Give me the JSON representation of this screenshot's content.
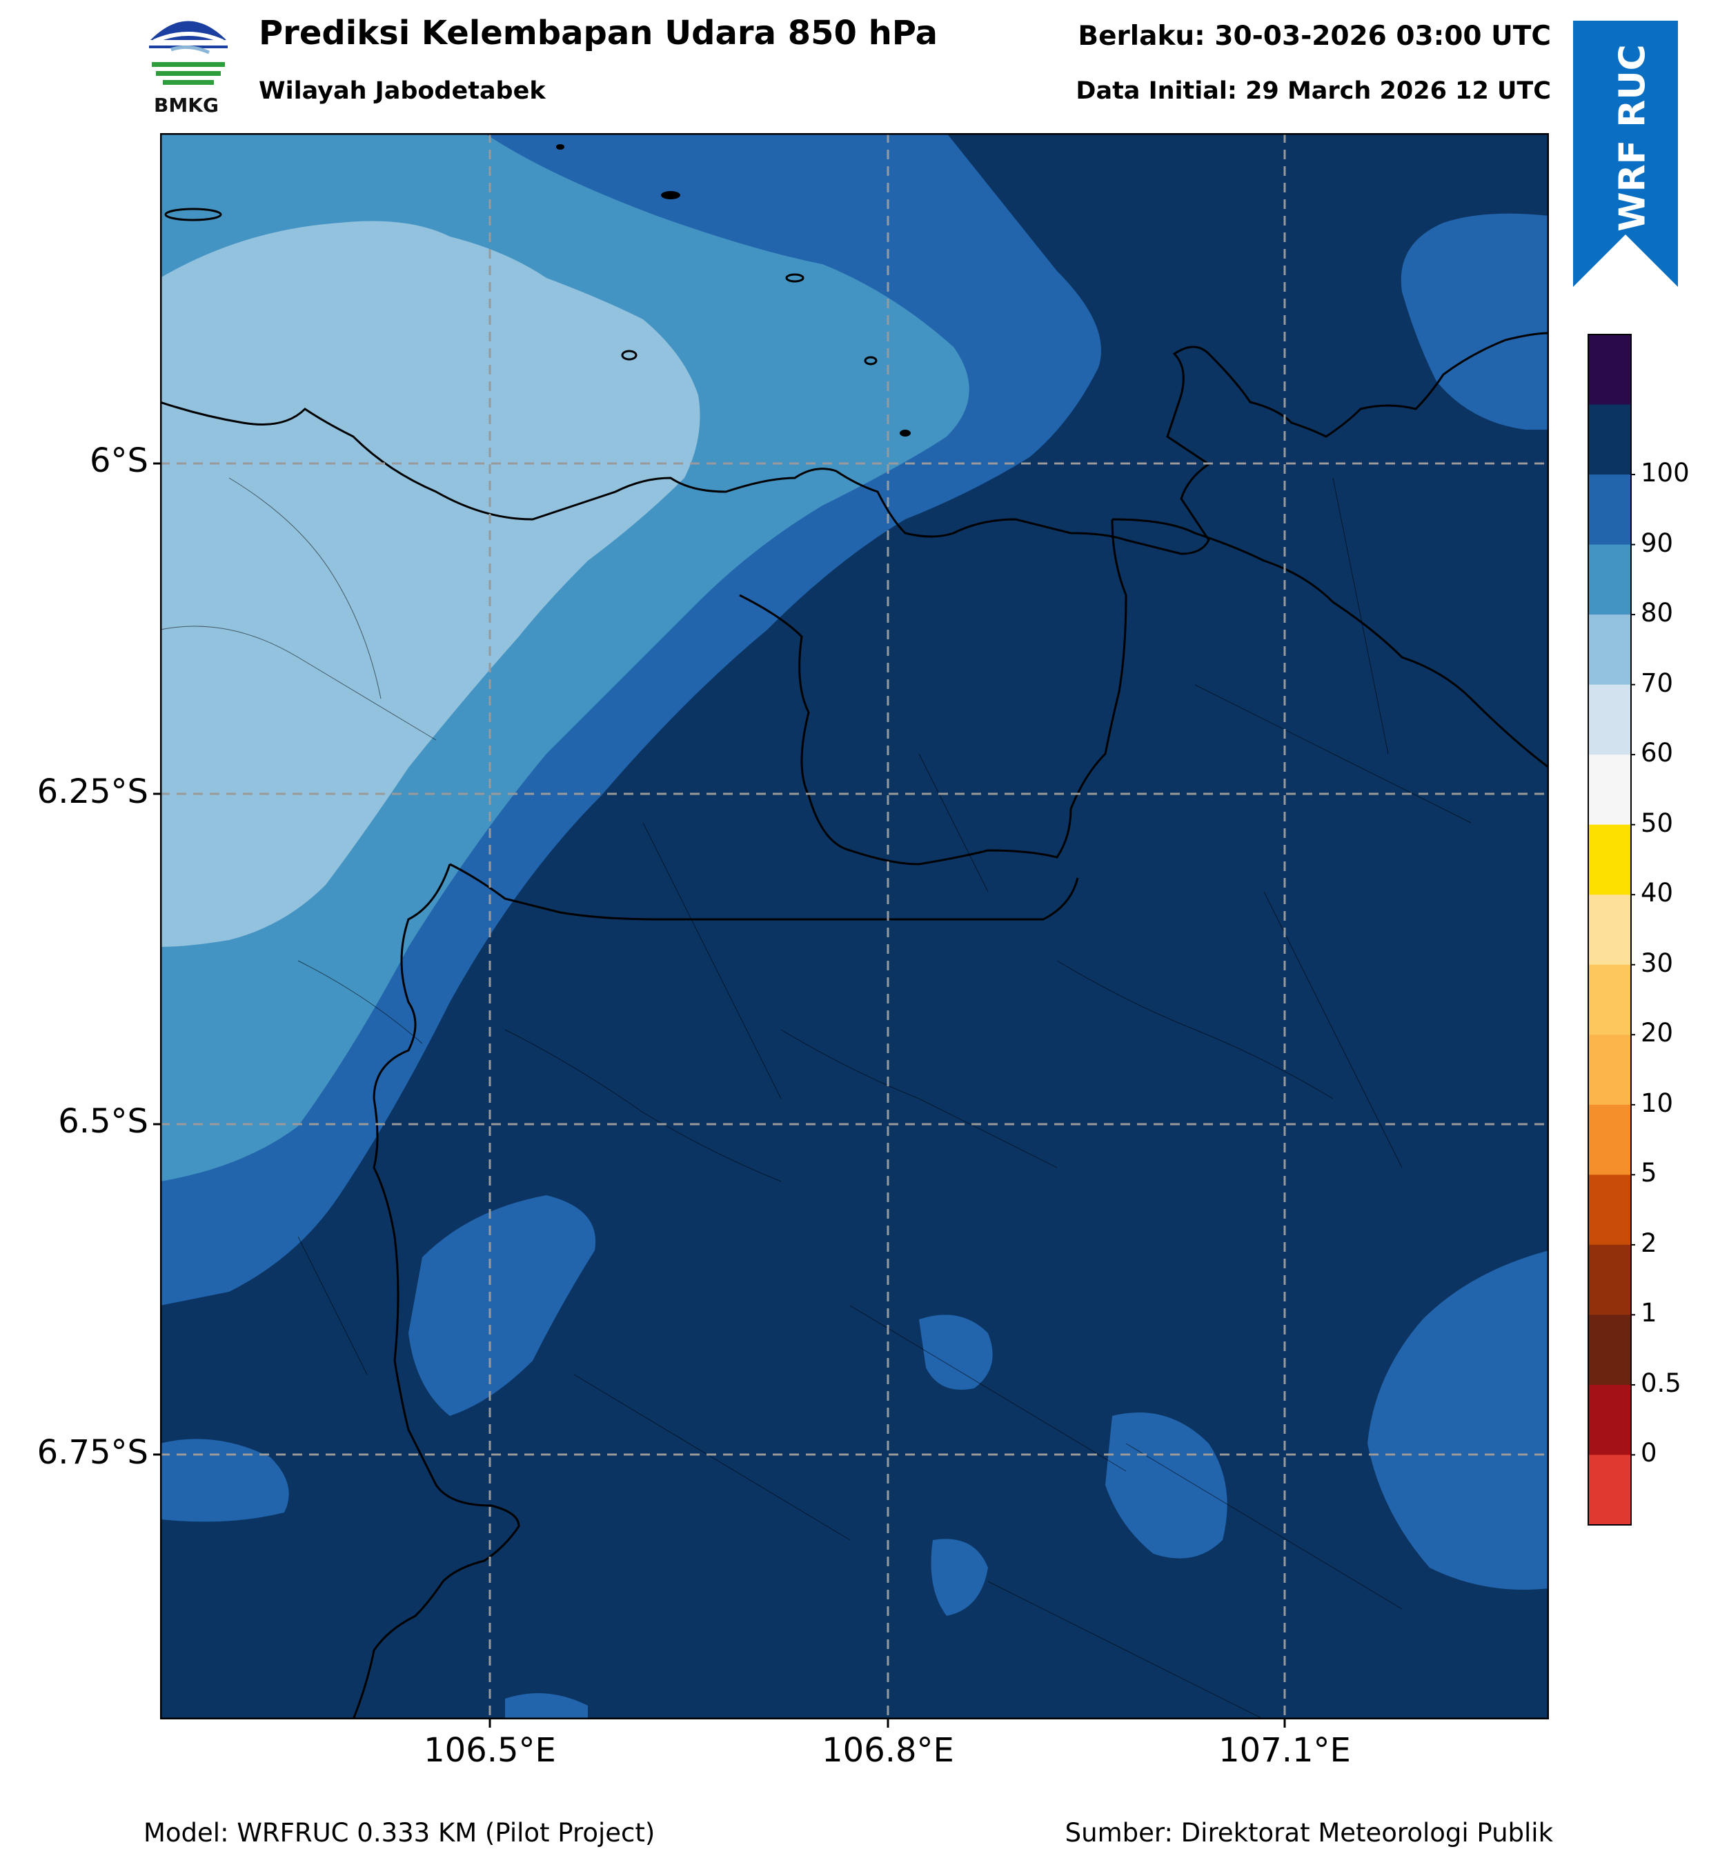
{
  "header": {
    "title": "Prediksi Kelembapan Udara 850 hPa",
    "subtitle": "Wilayah Jabodetabek",
    "valid_time": "Berlaku: 30-03-2026 03:00 UTC",
    "initial_time": "Data Initial: 29 March 2026 12 UTC"
  },
  "logo": {
    "text": "BMKG",
    "icon": "bmkg-logo-icon",
    "colors": [
      "#1a3fa0",
      "#2e9e3c"
    ]
  },
  "ribbon": {
    "text": "WRF RUC",
    "color": "#0a6fc2"
  },
  "map": {
    "latitude_ticks": [
      "6°S",
      "6.25°S",
      "6.5°S",
      "6.75°S"
    ],
    "longitude_ticks": [
      "106.5°E",
      "106.8°E",
      "107.1°E"
    ],
    "extent": {
      "lon_min": 106.25,
      "lon_max": 107.3,
      "lat_min": -6.95,
      "lat_max": -5.75
    },
    "grid": true
  },
  "colorbar": {
    "levels": [
      "0",
      "0.5",
      "1",
      "2",
      "5",
      "10",
      "20",
      "30",
      "40",
      "50",
      "60",
      "70",
      "80",
      "90",
      "100"
    ],
    "colors": [
      "#e03a30",
      "#a51216",
      "#6b2410",
      "#92300c",
      "#c64c07",
      "#f58f2b",
      "#fcb54a",
      "#fdc75e",
      "#fde19a",
      "#fddf00",
      "#f6f6f6",
      "#d2e3ef",
      "#92c2dd",
      "#4393c3",
      "#2265ad",
      "#0b3462",
      "#2a0a4a"
    ]
  },
  "footer": {
    "model": "Model: WRFRUC 0.333 KM (Pilot Project)",
    "source": "Sumber: Direktorat Meteorologi Publik"
  }
}
